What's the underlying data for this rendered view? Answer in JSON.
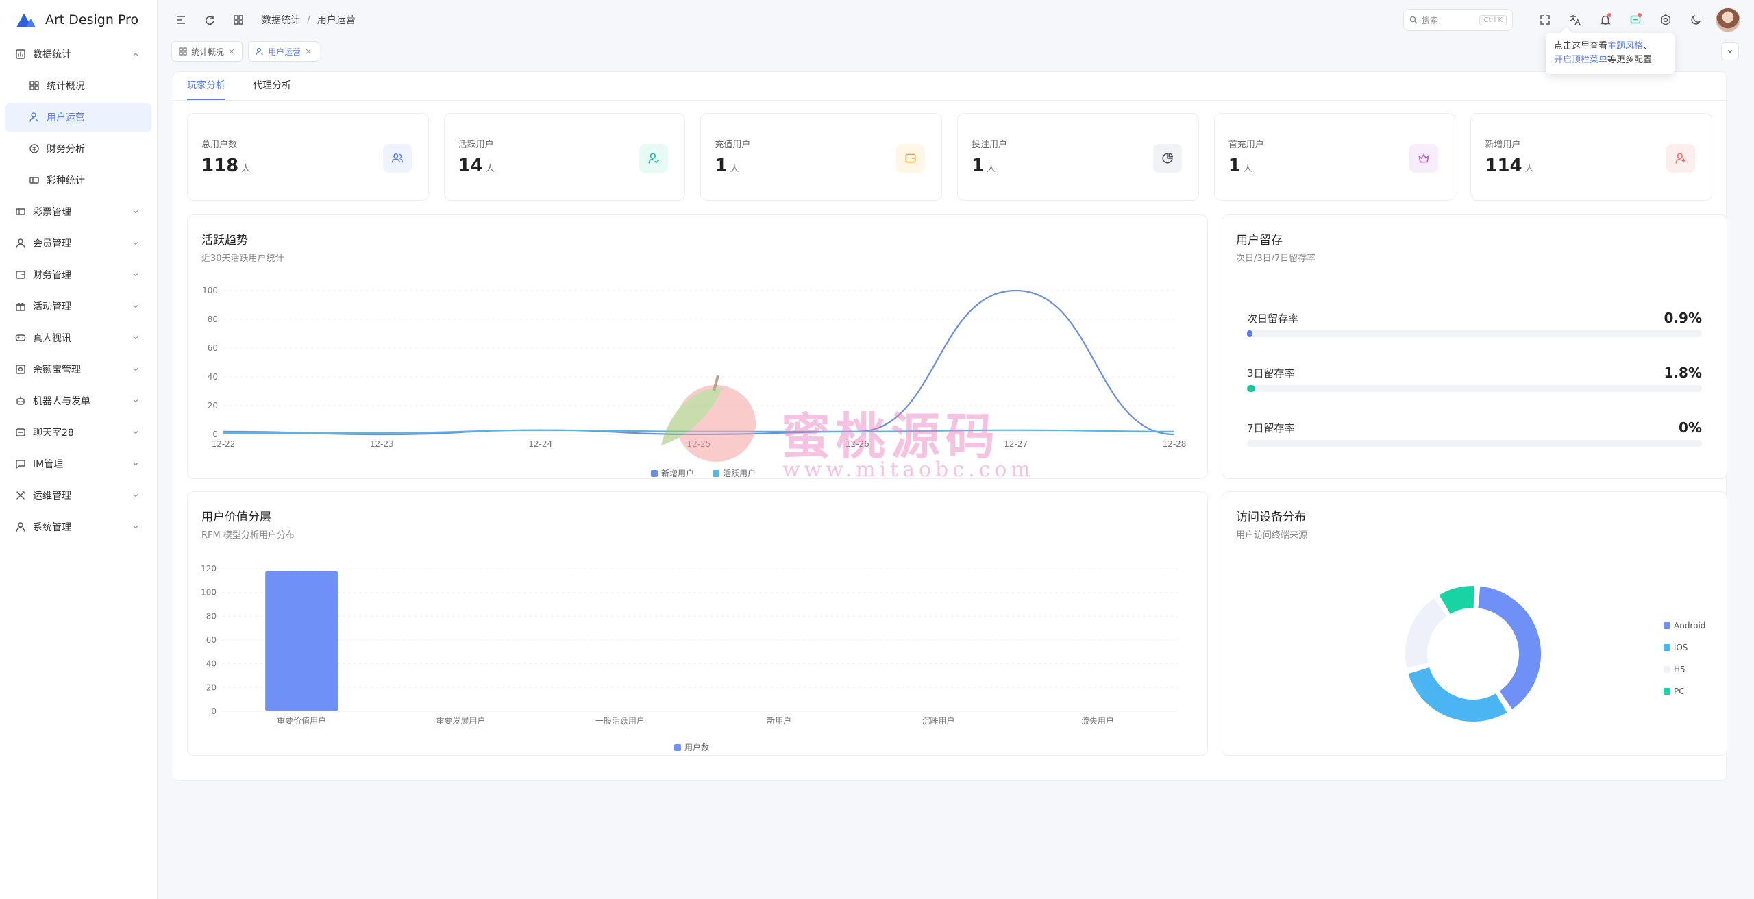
{
  "app": {
    "name": "Art Design Pro"
  },
  "sidebar": {
    "items": [
      {
        "label": "数据统计",
        "icon": "chart-icon",
        "expanded": true
      },
      {
        "label": "统计概况",
        "icon": "grid-icon",
        "sub": true
      },
      {
        "label": "用户运营",
        "icon": "user-search-icon",
        "sub": true,
        "active": true
      },
      {
        "label": "财务分析",
        "icon": "finance-icon",
        "sub": true
      },
      {
        "label": "彩种统计",
        "icon": "ticket-icon",
        "sub": true
      },
      {
        "label": "彩票管理",
        "icon": "ticket-icon"
      },
      {
        "label": "会员管理",
        "icon": "user-icon"
      },
      {
        "label": "财务管理",
        "icon": "wallet-icon"
      },
      {
        "label": "活动管理",
        "icon": "gift-icon"
      },
      {
        "label": "真人视讯",
        "icon": "gamepad-icon"
      },
      {
        "label": "余额宝管理",
        "icon": "safe-icon"
      },
      {
        "label": "机器人与发单",
        "icon": "robot-icon"
      },
      {
        "label": "聊天室28",
        "icon": "chat-room-icon"
      },
      {
        "label": "IM管理",
        "icon": "message-icon"
      },
      {
        "label": "运维管理",
        "icon": "tools-icon"
      },
      {
        "label": "系统管理",
        "icon": "user-icon"
      }
    ]
  },
  "header": {
    "breadcrumb": [
      "数据统计",
      "用户运营"
    ],
    "search_placeholder": "搜索",
    "search_shortcut": "Ctrl K"
  },
  "tabs": [
    {
      "label": "统计概况",
      "active": false
    },
    {
      "label": "用户运营",
      "active": true
    }
  ],
  "tooltip": {
    "line1_prefix": "点击这里查看",
    "line1_link": "主题风格",
    "line1_suffix": "、",
    "line2_link": "开启顶栏菜单",
    "line2_suffix": "等更多配置"
  },
  "subtabs": [
    "玩家分析",
    "代理分析"
  ],
  "stats": [
    {
      "label": "总用户数",
      "value": "118",
      "unit": "人",
      "color": "#5a7df5",
      "bg": "#eef3ff",
      "icon": "users-icon"
    },
    {
      "label": "活跃用户",
      "value": "14",
      "unit": "人",
      "color": "#19c49a",
      "bg": "#e8faf4",
      "icon": "user-check-icon"
    },
    {
      "label": "充值用户",
      "value": "1",
      "unit": "人",
      "color": "#f0a93b",
      "bg": "#fff6e8",
      "icon": "wallet-icon"
    },
    {
      "label": "投注用户",
      "value": "1",
      "unit": "人",
      "color": "#555555",
      "bg": "#f1f2f5",
      "icon": "pie-icon"
    },
    {
      "label": "首充用户",
      "value": "1",
      "unit": "人",
      "color": "#b35ee8",
      "bg": "#f7edfd",
      "icon": "crown-icon"
    },
    {
      "label": "新增用户",
      "value": "114",
      "unit": "人",
      "color": "#f56c6c",
      "bg": "#fdeeee",
      "icon": "user-plus-icon"
    }
  ],
  "activity": {
    "title": "活跃趋势",
    "subtitle": "近30天活跃用户统计"
  },
  "retention": {
    "title": "用户留存",
    "subtitle": "次日/3日/7日留存率",
    "rows": [
      {
        "label": "次日留存率",
        "value": "0.9%",
        "pct": 0.9,
        "color": "#5a7df5"
      },
      {
        "label": "3日留存率",
        "value": "1.8%",
        "pct": 1.8,
        "color": "#19c49a"
      },
      {
        "label": "7日留存率",
        "value": "0%",
        "pct": 0,
        "color": "#5a7df5"
      }
    ]
  },
  "value_layer": {
    "title": "用户价值分层",
    "subtitle": "RFM 模型分析用户分布"
  },
  "device": {
    "title": "访问设备分布",
    "subtitle": "用户访问终端来源"
  },
  "watermark": {
    "text": "蜜桃源码",
    "url": "www.mitaobc.com"
  },
  "chart_data": [
    {
      "type": "line",
      "x": [
        "12-22",
        "12-23",
        "12-24",
        "12-25",
        "12-26",
        "12-27",
        "12-28"
      ],
      "series": [
        {
          "name": "新增用户",
          "values": [
            2,
            0,
            3,
            0,
            2,
            100,
            0
          ],
          "color": "#6b8fdc"
        },
        {
          "name": "活跃用户",
          "values": [
            1,
            1,
            3,
            2,
            2,
            3,
            2
          ],
          "color": "#5ab4e0"
        }
      ],
      "ylim": [
        0,
        100
      ],
      "yticks": [
        0,
        20,
        40,
        60,
        80,
        100
      ]
    },
    {
      "type": "bar",
      "categories": [
        "重要价值用户",
        "重要发展用户",
        "一般活跃用户",
        "新用户",
        "沉睡用户",
        "流失用户"
      ],
      "series": [
        {
          "name": "用户数",
          "values": [
            118,
            0,
            0,
            0,
            0,
            0
          ],
          "color": "#6f91f7"
        }
      ],
      "ylim": [
        0,
        120
      ],
      "yticks": [
        0,
        20,
        40,
        60,
        80,
        100,
        120
      ]
    },
    {
      "type": "pie",
      "categories": [
        "Android",
        "iOS",
        "H5",
        "PC"
      ],
      "values": [
        40,
        30,
        20,
        10
      ],
      "colors": [
        "#6f91f7",
        "#4ab5f2",
        "#eef1f9",
        "#19d3a4"
      ]
    }
  ]
}
